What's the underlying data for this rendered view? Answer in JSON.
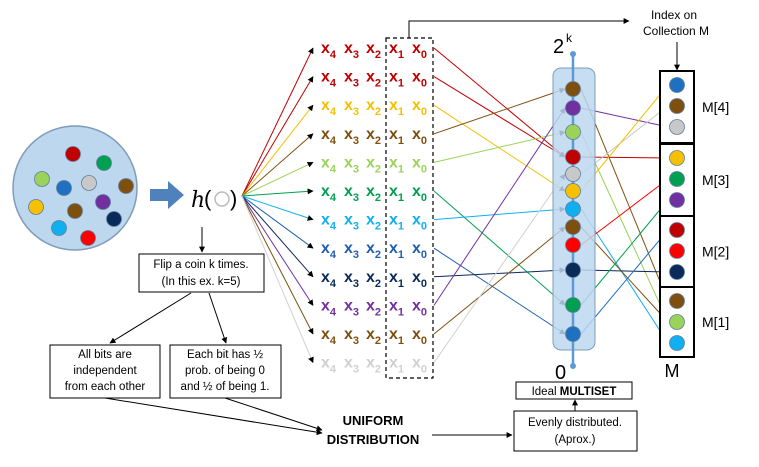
{
  "hash": {
    "symbol": "h",
    "open": "(",
    "close": ")"
  },
  "boxes": {
    "flip_line1": "Flip a coin k times.",
    "flip_line2": "(In this ex. k=5)",
    "indep_line1": "All bits are",
    "indep_line2": "independent",
    "indep_line3": "from each other",
    "prob_line1": "Each bit has ½",
    "prob_line2": "prob. of being 0",
    "prob_line3": "and ½ of being 1.",
    "uniform_line1": "UNIFORM",
    "uniform_line2": "DISTRIBUTION",
    "ideal_prefix": "Ideal",
    "ideal_bold": "MULTISET",
    "evenly_line1": "Evenly distributed.",
    "evenly_line2": "(Aprox.)",
    "index_line1": "Index on",
    "index_line2": "Collection M"
  },
  "axis": {
    "top_base": "2",
    "top_exp": "k",
    "bottom": "0"
  },
  "bit_letter": "x",
  "bit_subscripts": [
    "4",
    "3",
    "2",
    "1",
    "0"
  ],
  "row_colors": [
    "#C00000",
    "#C00000",
    "#F5C000",
    "#7F4F10",
    "#9BD35A",
    "#00A050",
    "#10B0F0",
    "#1F5FB0",
    "#0A2A5A",
    "#7030A0",
    "#7F4F10",
    "#D0D0D0"
  ],
  "buckets": [
    "M[4]",
    "M[3]",
    "M[2]",
    "M[1]"
  ],
  "bucket_dot_colors": [
    [
      "#1F70C0",
      "#7F4F10",
      "#C8C8C8"
    ],
    [
      "#F5C000",
      "#00A050",
      "#7030A0"
    ],
    [
      "#C00000",
      "#FF0000",
      "#0A2A5A"
    ],
    [
      "#7F4F10",
      "#9BD35A",
      "#10B0F0"
    ]
  ],
  "collection_label": "M",
  "ball_colors": [
    "#C00000",
    "#00A050",
    "#9BD35A",
    "#1F70C0",
    "#C8C8C8",
    "#7F4F10",
    "#F5C000",
    "#7F4F10",
    "#7030A0",
    "#10B0F0",
    "#0A2A5A",
    "#FF0000"
  ],
  "multiset_dot_colors": [
    "#7F4F10",
    "#7030A0",
    "#9BD35A",
    "#C00000",
    "#C8C8C8",
    "#F5C000",
    "#10B0F0",
    "#7F4F10",
    "#FF0000",
    "#0A2A5A",
    "#00A050",
    "#1F70C0"
  ]
}
